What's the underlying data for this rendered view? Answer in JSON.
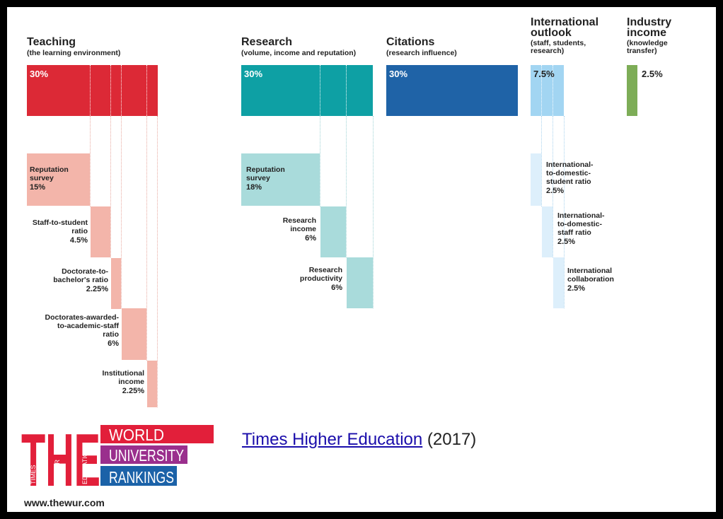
{
  "colors": {
    "teaching": "#dc2936",
    "teaching_light": "#f3b5aa",
    "research": "#0ea0a4",
    "research_light": "#a9dbdb",
    "citations": "#1f63a7",
    "international": "#a2d5f2",
    "international_light": "#ddeffb",
    "industry": "#7dad57",
    "link": "#1a0dab"
  },
  "pillars": {
    "teaching": {
      "title": "Teaching",
      "subtitle": "(the learning environment)",
      "weight": "30%"
    },
    "research": {
      "title": "Research",
      "subtitle": "(volume, income and reputation)",
      "weight": "30%"
    },
    "citations": {
      "title": "Citations",
      "subtitle": "(research influence)",
      "weight": "30%"
    },
    "international": {
      "title": "International\noutlook",
      "subtitle": "(staff, students,\nresearch)",
      "weight": "7.5%"
    },
    "industry": {
      "title": "Industry\nincome",
      "subtitle": "(knowledge\ntransfer)",
      "weight": "2.5%"
    }
  },
  "indicators": {
    "teaching": [
      {
        "label": "Reputation\nsurvey",
        "value": "15%"
      },
      {
        "label": "Staff-to-student\nratio",
        "value": "4.5%"
      },
      {
        "label": "Doctorate-to-\nbachelor's ratio",
        "value": "2.25%"
      },
      {
        "label": "Doctorates-awarded-\nto-academic-staff\nratio",
        "value": "6%"
      },
      {
        "label": "Institutional\nincome",
        "value": "2.25%"
      }
    ],
    "research": [
      {
        "label": "Reputation\nsurvey",
        "value": "18%"
      },
      {
        "label": "Research\nincome",
        "value": "6%"
      },
      {
        "label": "Research\nproductivity",
        "value": "6%"
      }
    ],
    "international": [
      {
        "label": "International-\nto-domestic-\nstudent ratio",
        "value": "2.5%"
      },
      {
        "label": "International-\nto-domestic-\nstaff ratio",
        "value": "2.5%"
      },
      {
        "label": "International\ncollaboration",
        "value": "2.5%"
      }
    ]
  },
  "logo": {
    "letters": "THE",
    "small_words": [
      "TIMES",
      "HIGHER",
      "EDUCATION"
    ],
    "lines": [
      "WORLD",
      "UNIVERSITY",
      "RANKINGS"
    ],
    "colors": [
      "#e21f3a",
      "#9a2f8d",
      "#1b62a8"
    ]
  },
  "citation": {
    "link_text": "Times Higher Education",
    "year_text": "(2017)"
  },
  "site_url": "www.thewur.com"
}
